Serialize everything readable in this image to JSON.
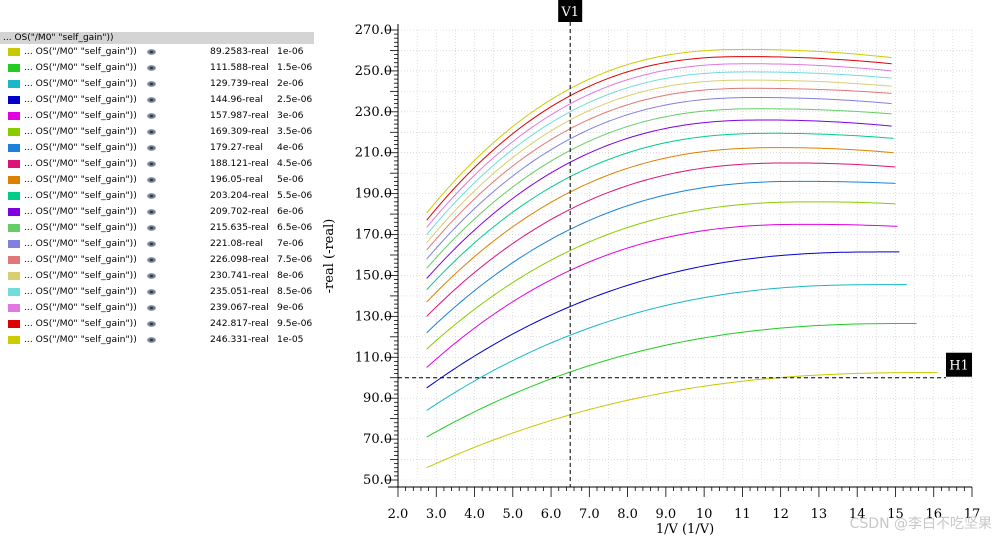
{
  "legend": {
    "header": "... OS(\"/M0\" \"self_gain\"))",
    "items": [
      {
        "name": "... OS(\"/M0\" \"self_gain\"))",
        "value": "89.2583-real",
        "param": "1e-06",
        "color": "#c8c800"
      },
      {
        "name": "... OS(\"/M0\" \"self_gain\"))",
        "value": "111.588-real",
        "param": "1.5e-06",
        "color": "#22cc22"
      },
      {
        "name": "... OS(\"/M0\" \"self_gain\"))",
        "value": "129.739-real",
        "param": "2e-06",
        "color": "#18b8c8"
      },
      {
        "name": "... OS(\"/M0\" \"self_gain\"))",
        "value": "144.96-real",
        "param": "2.5e-06",
        "color": "#0000c8"
      },
      {
        "name": "... OS(\"/M0\" \"self_gain\"))",
        "value": "157.987-real",
        "param": "3e-06",
        "color": "#e000e0"
      },
      {
        "name": "... OS(\"/M0\" \"self_gain\"))",
        "value": "169.309-real",
        "param": "3.5e-06",
        "color": "#88cc00"
      },
      {
        "name": "... OS(\"/M0\" \"self_gain\"))",
        "value": "179.27-real",
        "param": "4e-06",
        "color": "#1a82d8"
      },
      {
        "name": "... OS(\"/M0\" \"self_gain\"))",
        "value": "188.121-real",
        "param": "4.5e-06",
        "color": "#dd1177"
      },
      {
        "name": "... OS(\"/M0\" \"self_gain\"))",
        "value": "196.05-real",
        "param": "5e-06",
        "color": "#dd8000"
      },
      {
        "name": "... OS(\"/M0\" \"self_gain\"))",
        "value": "203.204-real",
        "param": "5.5e-06",
        "color": "#00cc88"
      },
      {
        "name": "... OS(\"/M0\" \"self_gain\"))",
        "value": "209.702-real",
        "param": "6e-06",
        "color": "#8000e0"
      },
      {
        "name": "... OS(\"/M0\" \"self_gain\"))",
        "value": "215.635-real",
        "param": "6.5e-06",
        "color": "#66cc66"
      },
      {
        "name": "... OS(\"/M0\" \"self_gain\"))",
        "value": "221.08-real",
        "param": "7e-06",
        "color": "#8080e0"
      },
      {
        "name": "... OS(\"/M0\" \"self_gain\"))",
        "value": "226.098-real",
        "param": "7.5e-06",
        "color": "#e07878"
      },
      {
        "name": "... OS(\"/M0\" \"self_gain\"))",
        "value": "230.741-real",
        "param": "8e-06",
        "color": "#d8d070"
      },
      {
        "name": "... OS(\"/M0\" \"self_gain\"))",
        "value": "235.051-real",
        "param": "8.5e-06",
        "color": "#70dcdc"
      },
      {
        "name": "... OS(\"/M0\" \"self_gain\"))",
        "value": "239.067-real",
        "param": "9e-06",
        "color": "#e078e0"
      },
      {
        "name": "... OS(\"/M0\" \"self_gain\"))",
        "value": "242.817-real",
        "param": "9.5e-06",
        "color": "#dd0000"
      },
      {
        "name": "... OS(\"/M0\" \"self_gain\"))",
        "value": "246.331-real",
        "param": "1e-05",
        "color": "#cccc00"
      }
    ]
  },
  "chart_data": {
    "type": "line",
    "xlabel": "1/V (1/V)",
    "ylabel": "-real (-real)",
    "xlim": [
      2.0,
      17.0
    ],
    "ylim": [
      50.0,
      270.0
    ],
    "xticks": [
      "2.0",
      "3.0",
      "4.0",
      "5.0",
      "6.0",
      "7.0",
      "8.0",
      "9.0",
      "10",
      "11",
      "12",
      "13",
      "14",
      "15",
      "16",
      "17"
    ],
    "yticks": [
      "50.0",
      "70.0",
      "90.0",
      "110.0",
      "130.0",
      "150.0",
      "170.0",
      "190.0",
      "210.0",
      "230.0",
      "250.0",
      "270.0"
    ],
    "grid": true,
    "markers": {
      "vertical": {
        "label": "V1",
        "x": 6.5
      },
      "horizontal": {
        "label": "H1",
        "y": 100.0
      }
    },
    "series": [
      {
        "name": "1e-06",
        "x_start": 2.75,
        "x_end": 16.1,
        "y_start": 56.0,
        "y_peak": 102.5,
        "x_peak": 15.8,
        "y_end": 102.5
      },
      {
        "name": "1.5e-06",
        "x_start": 2.75,
        "x_end": 15.55,
        "y_start": 71.0,
        "y_peak": 126.5,
        "x_peak": 15.3,
        "y_end": 126.5
      },
      {
        "name": "2e-06",
        "x_start": 2.75,
        "x_end": 15.3,
        "y_start": 84.0,
        "y_peak": 145.5,
        "x_peak": 14.6,
        "y_end": 145.5
      },
      {
        "name": "2.5e-06",
        "x_start": 2.75,
        "x_end": 15.1,
        "y_start": 95.0,
        "y_peak": 161.5,
        "x_peak": 14.6,
        "y_end": 161.5
      },
      {
        "name": "3e-06",
        "x_start": 2.75,
        "x_end": 15.05,
        "y_start": 105.0,
        "y_peak": 175.0,
        "x_peak": 12.7,
        "y_end": 174.0
      },
      {
        "name": "3.5e-06",
        "x_start": 2.75,
        "x_end": 15.0,
        "y_start": 114.0,
        "y_peak": 186.0,
        "x_peak": 12.9,
        "y_end": 185.0
      },
      {
        "name": "4e-06",
        "x_start": 2.75,
        "x_end": 15.0,
        "y_start": 122.0,
        "y_peak": 196.0,
        "x_peak": 12.6,
        "y_end": 195.0
      },
      {
        "name": "4.5e-06",
        "x_start": 2.75,
        "x_end": 15.0,
        "y_start": 130.0,
        "y_peak": 205.0,
        "x_peak": 12.3,
        "y_end": 203.0
      },
      {
        "name": "5e-06",
        "x_start": 2.75,
        "x_end": 14.95,
        "y_start": 137.0,
        "y_peak": 212.5,
        "x_peak": 12.0,
        "y_end": 210.0
      },
      {
        "name": "5.5e-06",
        "x_start": 2.75,
        "x_end": 14.95,
        "y_start": 143.0,
        "y_peak": 219.5,
        "x_peak": 11.8,
        "y_end": 217.0
      },
      {
        "name": "6e-06",
        "x_start": 2.75,
        "x_end": 14.9,
        "y_start": 148.5,
        "y_peak": 226.0,
        "x_peak": 11.6,
        "y_end": 223.0
      },
      {
        "name": "6.5e-06",
        "x_start": 2.75,
        "x_end": 14.9,
        "y_start": 153.5,
        "y_peak": 231.5,
        "x_peak": 11.5,
        "y_end": 229.0
      },
      {
        "name": "7e-06",
        "x_start": 2.75,
        "x_end": 14.9,
        "y_start": 158.0,
        "y_peak": 237.0,
        "x_peak": 11.4,
        "y_end": 234.0
      },
      {
        "name": "7.5e-06",
        "x_start": 2.75,
        "x_end": 14.9,
        "y_start": 162.5,
        "y_peak": 241.5,
        "x_peak": 11.3,
        "y_end": 239.0
      },
      {
        "name": "8e-06",
        "x_start": 2.75,
        "x_end": 14.9,
        "y_start": 166.0,
        "y_peak": 245.5,
        "x_peak": 11.2,
        "y_end": 242.5
      },
      {
        "name": "8.5e-06",
        "x_start": 2.75,
        "x_end": 14.9,
        "y_start": 170.0,
        "y_peak": 249.5,
        "x_peak": 11.2,
        "y_end": 246.5
      },
      {
        "name": "9e-06",
        "x_start": 2.75,
        "x_end": 14.9,
        "y_start": 173.5,
        "y_peak": 253.5,
        "x_peak": 11.2,
        "y_end": 250.0
      },
      {
        "name": "9.5e-06",
        "x_start": 2.75,
        "x_end": 14.9,
        "y_start": 177.0,
        "y_peak": 257.0,
        "x_peak": 11.1,
        "y_end": 253.5
      },
      {
        "name": "1e-05",
        "x_start": 2.75,
        "x_end": 14.9,
        "y_start": 180.5,
        "y_peak": 260.5,
        "x_peak": 11.1,
        "y_end": 256.5
      }
    ]
  },
  "watermark": "CSDN @李白不吃坚果"
}
